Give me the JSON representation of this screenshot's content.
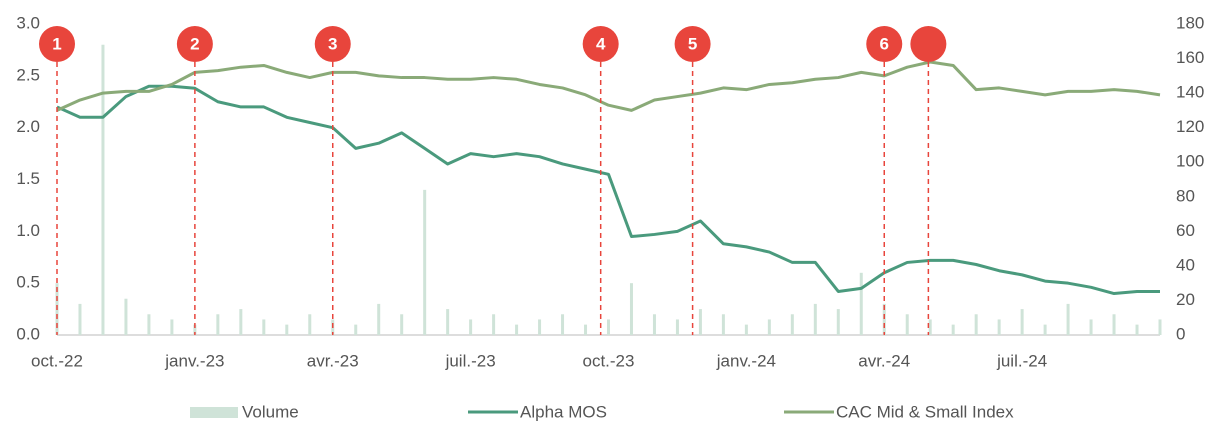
{
  "chart_data": {
    "type": "line",
    "x": [
      0,
      0.5,
      1,
      1.5,
      2,
      2.5,
      3,
      3.5,
      4,
      4.5,
      5,
      5.5,
      6,
      6.5,
      7,
      7.5,
      8,
      8.5,
      9,
      9.5,
      10,
      10.5,
      11,
      11.5,
      12,
      12.5,
      13,
      13.5,
      14,
      14.5,
      15,
      15.5,
      16,
      16.5,
      17,
      17.5,
      18,
      18.5,
      19,
      19.5,
      20,
      20.5,
      21,
      21.5,
      22,
      22.5,
      23,
      23.5,
      24
    ],
    "xlim": [
      0,
      24
    ],
    "xticks": [
      {
        "value": 0,
        "label": "oct.-22"
      },
      {
        "value": 3,
        "label": "janv.-23"
      },
      {
        "value": 6,
        "label": "avr.-23"
      },
      {
        "value": 9,
        "label": "juil.-23"
      },
      {
        "value": 12,
        "label": "oct.-23"
      },
      {
        "value": 15,
        "label": "janv.-24"
      },
      {
        "value": 18,
        "label": "avr.-24"
      },
      {
        "value": 21,
        "label": "juil.-24"
      }
    ],
    "ylim": [
      0,
      3
    ],
    "yticks": [
      {
        "value": 0,
        "label": "0.0"
      },
      0.5,
      {
        "value": 1,
        "label": "1.0"
      },
      1.5,
      {
        "value": 2,
        "label": "2.0"
      },
      2.5,
      {
        "value": 3,
        "label": "3.0"
      }
    ],
    "y2lim": [
      0,
      180
    ],
    "y2ticks": [
      0,
      20,
      40,
      60,
      80,
      100,
      120,
      140,
      160,
      180
    ],
    "series": [
      {
        "name": "Volume",
        "type": "bar",
        "color": "#cfe3d8",
        "values": [
          0.5,
          0.3,
          2.8,
          0.35,
          0.2,
          0.15,
          0.1,
          0.2,
          0.25,
          0.15,
          0.1,
          0.2,
          0.15,
          0.1,
          0.3,
          0.2,
          1.4,
          0.25,
          0.15,
          0.2,
          0.1,
          0.15,
          0.2,
          0.1,
          0.15,
          0.5,
          0.2,
          0.15,
          0.25,
          0.2,
          0.1,
          0.15,
          0.2,
          0.3,
          0.25,
          0.6,
          0.3,
          0.2,
          0.15,
          0.1,
          0.2,
          0.15,
          0.25,
          0.1,
          0.3,
          0.15,
          0.2,
          0.1,
          0.15
        ]
      },
      {
        "name": "Alpha MOS",
        "color": "#4a9a7d",
        "values": [
          2.2,
          2.1,
          2.1,
          2.3,
          2.4,
          2.4,
          2.38,
          2.25,
          2.2,
          2.2,
          2.1,
          2.05,
          2.0,
          1.8,
          1.85,
          1.95,
          1.8,
          1.65,
          1.75,
          1.72,
          1.75,
          1.72,
          1.65,
          1.6,
          1.55,
          0.95,
          0.97,
          1.0,
          1.1,
          0.88,
          0.85,
          0.8,
          0.7,
          0.7,
          0.42,
          0.45,
          0.6,
          0.7,
          0.72,
          0.72,
          0.68,
          0.62,
          0.58,
          0.52,
          0.5,
          0.46,
          0.4,
          0.42,
          0.42
        ]
      },
      {
        "name": "CAC Mid & Small Index",
        "color": "#8aaa78",
        "axis": "y2",
        "values": [
          130,
          136,
          140,
          141,
          141,
          145,
          152,
          153,
          155,
          156,
          152,
          149,
          152,
          152,
          150,
          149,
          149,
          148,
          148,
          149,
          148,
          145,
          143,
          139,
          133,
          130,
          136,
          138,
          140,
          143,
          142,
          145,
          146,
          148,
          149,
          152,
          150,
          155,
          158,
          156,
          142,
          143,
          141,
          139,
          141,
          141,
          142,
          141,
          139
        ]
      }
    ],
    "annotations": [
      {
        "x": 0,
        "label": "1"
      },
      {
        "x": 3,
        "label": "2"
      },
      {
        "x": 6,
        "label": "3"
      },
      {
        "x": 11.83,
        "label": "4"
      },
      {
        "x": 13.83,
        "label": "5"
      },
      {
        "x": 18,
        "label": "6"
      },
      {
        "x": 18.96,
        "label": null
      }
    ]
  }
}
